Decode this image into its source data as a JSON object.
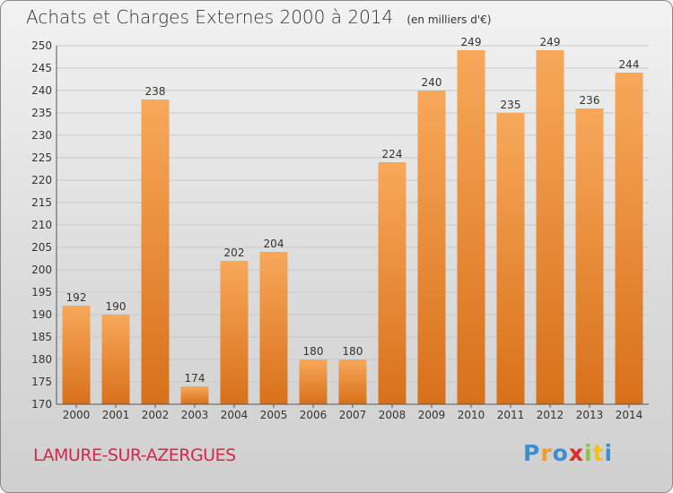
{
  "title": "Achats et Charges Externes 2000 à 2014",
  "unit_note": "(en milliers d'€)",
  "commune": "LAMURE-SUR-AZERGUES",
  "logo": {
    "letters": [
      "P",
      "r",
      "o",
      "x",
      "i",
      "t",
      "i"
    ],
    "colors": [
      "#3a8fd0",
      "#f39a2a",
      "#3a8fd0",
      "#e02a2a",
      "#8cc43c",
      "#f2c20c",
      "#3a8fd0"
    ]
  },
  "colors": {
    "bar": "#f0902e",
    "bar_top": "#f7a85a",
    "bar_bottom": "#d8701a",
    "commune_text": "#d4284b"
  },
  "chart_data": {
    "type": "bar",
    "categories": [
      "2000",
      "2001",
      "2002",
      "2003",
      "2004",
      "2005",
      "2006",
      "2007",
      "2008",
      "2009",
      "2010",
      "2011",
      "2012",
      "2013",
      "2014"
    ],
    "values": [
      192,
      190,
      238,
      174,
      202,
      204,
      180,
      180,
      224,
      240,
      249,
      235,
      249,
      236,
      244
    ],
    "data_labels": [
      "192",
      "190",
      "238",
      "174",
      "202",
      "204",
      "180",
      "180",
      "224",
      "240",
      "249",
      "235",
      "249",
      "236",
      "244"
    ],
    "title": "Achats et Charges Externes 2000 à 2014",
    "xlabel": "",
    "ylabel": "",
    "ylim": [
      170,
      250
    ],
    "yticks": [
      170,
      175,
      180,
      185,
      190,
      195,
      200,
      205,
      210,
      215,
      220,
      225,
      230,
      235,
      240,
      245,
      250
    ],
    "grid": true
  }
}
